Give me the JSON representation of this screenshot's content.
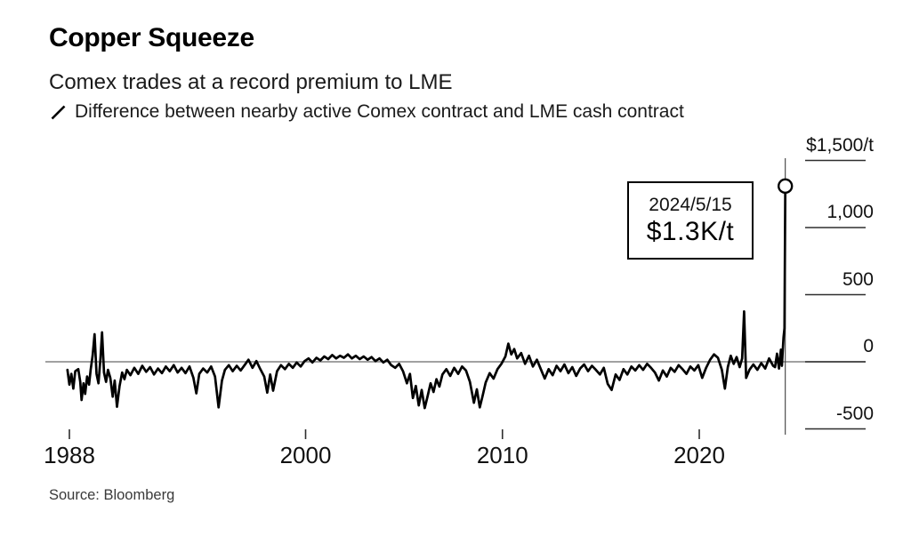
{
  "header": {
    "title": "Copper Squeeze",
    "subtitle": "Comex trades at a record premium to LME"
  },
  "legend": {
    "label": "Difference between nearby active Comex contract and LME cash contract"
  },
  "annotation": {
    "date": "2024/5/15",
    "value": "$1.3K/t"
  },
  "source": "Source: Bloomberg",
  "colors": {
    "line": "#000000",
    "zero_line": "#828282",
    "tracker_line": "#3d3d3d",
    "tick": "#2e2e2e",
    "marker_fill": "#ffffff",
    "marker_stroke": "#000000",
    "annotation_border": "#000000"
  },
  "chart_data": {
    "type": "line",
    "title": "Copper Squeeze",
    "subtitle": "Comex trades at a record premium to LME",
    "series_name": "Difference between nearby active Comex contract and LME cash contract",
    "unit": "$/t",
    "xlabel": "",
    "ylabel": "$/t",
    "xlim": [
      1987.6,
      2024.8
    ],
    "ylim": [
      -650,
      1560
    ],
    "grid": false,
    "legend_position": "top-left",
    "x_ticks": [
      1988,
      2000,
      2010,
      2020
    ],
    "x_tick_labels": [
      "1988",
      "2000",
      "2010",
      "2020"
    ],
    "y_ticks": [
      1500,
      1000,
      500,
      0,
      -500
    ],
    "y_tick_labels": [
      "$1,500/t",
      "1,000",
      "500",
      "0",
      "-500"
    ],
    "zero_value": 0,
    "last_point": {
      "x": 2024.37,
      "y": 1309,
      "date": "2024/5/15",
      "label": "$1.3K/t"
    },
    "points": [
      [
        1987.9,
        -60
      ],
      [
        1988.0,
        -170
      ],
      [
        1988.1,
        -90
      ],
      [
        1988.2,
        -200
      ],
      [
        1988.3,
        -70
      ],
      [
        1988.45,
        -55
      ],
      [
        1988.55,
        -150
      ],
      [
        1988.62,
        -285
      ],
      [
        1988.72,
        -160
      ],
      [
        1988.8,
        -240
      ],
      [
        1988.9,
        -110
      ],
      [
        1989.0,
        -170
      ],
      [
        1989.08,
        -60
      ],
      [
        1989.18,
        45
      ],
      [
        1989.28,
        205
      ],
      [
        1989.38,
        -90
      ],
      [
        1989.48,
        -160
      ],
      [
        1989.58,
        30
      ],
      [
        1989.66,
        220
      ],
      [
        1989.76,
        -80
      ],
      [
        1989.86,
        -150
      ],
      [
        1989.96,
        -60
      ],
      [
        1990.08,
        -120
      ],
      [
        1990.2,
        -260
      ],
      [
        1990.3,
        -140
      ],
      [
        1990.42,
        -335
      ],
      [
        1990.55,
        -180
      ],
      [
        1990.68,
        -80
      ],
      [
        1990.8,
        -130
      ],
      [
        1990.92,
        -60
      ],
      [
        1991.1,
        -100
      ],
      [
        1991.3,
        -45
      ],
      [
        1991.5,
        -90
      ],
      [
        1991.7,
        -30
      ],
      [
        1991.9,
        -75
      ],
      [
        1992.1,
        -40
      ],
      [
        1992.3,
        -95
      ],
      [
        1992.5,
        -50
      ],
      [
        1992.7,
        -85
      ],
      [
        1992.9,
        -35
      ],
      [
        1993.1,
        -70
      ],
      [
        1993.3,
        -25
      ],
      [
        1993.5,
        -80
      ],
      [
        1993.7,
        -45
      ],
      [
        1993.9,
        -85
      ],
      [
        1994.1,
        -35
      ],
      [
        1994.3,
        -120
      ],
      [
        1994.45,
        -235
      ],
      [
        1994.6,
        -90
      ],
      [
        1994.8,
        -50
      ],
      [
        1995.0,
        -80
      ],
      [
        1995.2,
        -35
      ],
      [
        1995.4,
        -110
      ],
      [
        1995.58,
        -340
      ],
      [
        1995.75,
        -140
      ],
      [
        1995.9,
        -60
      ],
      [
        1996.1,
        -25
      ],
      [
        1996.3,
        -70
      ],
      [
        1996.5,
        -30
      ],
      [
        1996.7,
        -65
      ],
      [
        1996.9,
        -25
      ],
      [
        1997.1,
        15
      ],
      [
        1997.3,
        -45
      ],
      [
        1997.5,
        5
      ],
      [
        1997.7,
        -55
      ],
      [
        1997.9,
        -110
      ],
      [
        1998.05,
        -230
      ],
      [
        1998.2,
        -95
      ],
      [
        1998.35,
        -215
      ],
      [
        1998.55,
        -70
      ],
      [
        1998.75,
        -25
      ],
      [
        1998.95,
        -55
      ],
      [
        1999.15,
        -15
      ],
      [
        1999.35,
        -45
      ],
      [
        1999.55,
        -5
      ],
      [
        1999.75,
        -35
      ],
      [
        1999.95,
        5
      ],
      [
        2000.15,
        25
      ],
      [
        2000.35,
        -5
      ],
      [
        2000.55,
        30
      ],
      [
        2000.75,
        10
      ],
      [
        2000.95,
        40
      ],
      [
        2001.15,
        20
      ],
      [
        2001.35,
        50
      ],
      [
        2001.55,
        25
      ],
      [
        2001.75,
        45
      ],
      [
        2001.95,
        30
      ],
      [
        2002.15,
        55
      ],
      [
        2002.35,
        25
      ],
      [
        2002.55,
        45
      ],
      [
        2002.75,
        20
      ],
      [
        2002.95,
        40
      ],
      [
        2003.15,
        15
      ],
      [
        2003.35,
        35
      ],
      [
        2003.55,
        5
      ],
      [
        2003.75,
        25
      ],
      [
        2003.95,
        -5
      ],
      [
        2004.15,
        15
      ],
      [
        2004.35,
        -25
      ],
      [
        2004.55,
        -45
      ],
      [
        2004.75,
        -15
      ],
      [
        2004.95,
        -70
      ],
      [
        2005.15,
        -160
      ],
      [
        2005.3,
        -90
      ],
      [
        2005.45,
        -270
      ],
      [
        2005.6,
        -180
      ],
      [
        2005.75,
        -325
      ],
      [
        2005.9,
        -210
      ],
      [
        2006.05,
        -345
      ],
      [
        2006.2,
        -255
      ],
      [
        2006.35,
        -160
      ],
      [
        2006.5,
        -225
      ],
      [
        2006.65,
        -130
      ],
      [
        2006.8,
        -185
      ],
      [
        2006.95,
        -95
      ],
      [
        2007.15,
        -55
      ],
      [
        2007.35,
        -105
      ],
      [
        2007.55,
        -45
      ],
      [
        2007.75,
        -90
      ],
      [
        2007.95,
        -35
      ],
      [
        2008.15,
        -65
      ],
      [
        2008.35,
        -150
      ],
      [
        2008.55,
        -305
      ],
      [
        2008.7,
        -205
      ],
      [
        2008.85,
        -340
      ],
      [
        2009.0,
        -250
      ],
      [
        2009.15,
        -155
      ],
      [
        2009.35,
        -85
      ],
      [
        2009.55,
        -125
      ],
      [
        2009.75,
        -55
      ],
      [
        2009.95,
        -15
      ],
      [
        2010.15,
        40
      ],
      [
        2010.3,
        135
      ],
      [
        2010.45,
        55
      ],
      [
        2010.6,
        95
      ],
      [
        2010.75,
        25
      ],
      [
        2010.95,
        65
      ],
      [
        2011.15,
        -15
      ],
      [
        2011.35,
        45
      ],
      [
        2011.55,
        -35
      ],
      [
        2011.75,
        15
      ],
      [
        2011.95,
        -55
      ],
      [
        2012.15,
        -125
      ],
      [
        2012.35,
        -55
      ],
      [
        2012.55,
        -100
      ],
      [
        2012.75,
        -30
      ],
      [
        2012.95,
        -70
      ],
      [
        2013.15,
        -20
      ],
      [
        2013.35,
        -85
      ],
      [
        2013.55,
        -40
      ],
      [
        2013.75,
        -105
      ],
      [
        2013.95,
        -50
      ],
      [
        2014.15,
        -20
      ],
      [
        2014.35,
        -70
      ],
      [
        2014.55,
        -30
      ],
      [
        2014.75,
        -60
      ],
      [
        2014.95,
        -95
      ],
      [
        2015.15,
        -45
      ],
      [
        2015.35,
        -165
      ],
      [
        2015.55,
        -210
      ],
      [
        2015.75,
        -95
      ],
      [
        2015.95,
        -135
      ],
      [
        2016.15,
        -55
      ],
      [
        2016.35,
        -95
      ],
      [
        2016.55,
        -35
      ],
      [
        2016.75,
        -65
      ],
      [
        2016.95,
        -25
      ],
      [
        2017.15,
        -60
      ],
      [
        2017.35,
        -15
      ],
      [
        2017.55,
        -45
      ],
      [
        2017.75,
        -80
      ],
      [
        2017.95,
        -140
      ],
      [
        2018.15,
        -65
      ],
      [
        2018.35,
        -110
      ],
      [
        2018.55,
        -45
      ],
      [
        2018.75,
        -75
      ],
      [
        2018.95,
        -25
      ],
      [
        2019.15,
        -55
      ],
      [
        2019.35,
        -90
      ],
      [
        2019.55,
        -35
      ],
      [
        2019.75,
        -65
      ],
      [
        2019.95,
        -25
      ],
      [
        2020.15,
        -120
      ],
      [
        2020.35,
        -45
      ],
      [
        2020.55,
        15
      ],
      [
        2020.75,
        55
      ],
      [
        2020.95,
        30
      ],
      [
        2021.15,
        -60
      ],
      [
        2021.3,
        -200
      ],
      [
        2021.45,
        -40
      ],
      [
        2021.6,
        45
      ],
      [
        2021.75,
        -15
      ],
      [
        2021.9,
        35
      ],
      [
        2022.05,
        -40
      ],
      [
        2022.18,
        25
      ],
      [
        2022.28,
        375
      ],
      [
        2022.38,
        -120
      ],
      [
        2022.55,
        -60
      ],
      [
        2022.75,
        -20
      ],
      [
        2022.95,
        -60
      ],
      [
        2023.15,
        -10
      ],
      [
        2023.35,
        -50
      ],
      [
        2023.55,
        25
      ],
      [
        2023.75,
        -30
      ],
      [
        2023.85,
        -40
      ],
      [
        2023.95,
        60
      ],
      [
        2024.05,
        -50
      ],
      [
        2024.15,
        90
      ],
      [
        2024.2,
        -30
      ],
      [
        2024.28,
        180
      ],
      [
        2024.33,
        250
      ],
      [
        2024.37,
        1309
      ]
    ]
  }
}
